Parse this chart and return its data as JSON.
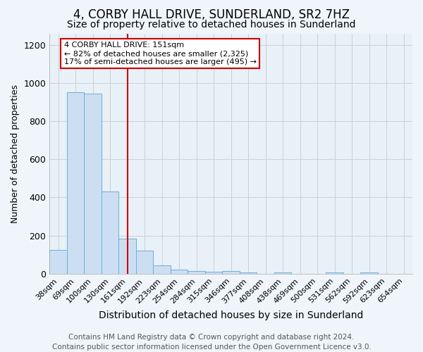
{
  "title": "4, CORBY HALL DRIVE, SUNDERLAND, SR2 7HZ",
  "subtitle": "Size of property relative to detached houses in Sunderland",
  "xlabel": "Distribution of detached houses by size in Sunderland",
  "ylabel": "Number of detached properties",
  "footer_line1": "Contains HM Land Registry data © Crown copyright and database right 2024.",
  "footer_line2": "Contains public sector information licensed under the Open Government Licence v3.0.",
  "categories": [
    "38sqm",
    "69sqm",
    "100sqm",
    "130sqm",
    "161sqm",
    "192sqm",
    "223sqm",
    "254sqm",
    "284sqm",
    "315sqm",
    "346sqm",
    "377sqm",
    "408sqm",
    "438sqm",
    "469sqm",
    "500sqm",
    "531sqm",
    "562sqm",
    "592sqm",
    "623sqm",
    "654sqm"
  ],
  "values": [
    125,
    950,
    945,
    430,
    185,
    120,
    45,
    20,
    15,
    12,
    15,
    8,
    0,
    8,
    0,
    0,
    8,
    0,
    8,
    0,
    0
  ],
  "bar_color": "#ccdff2",
  "bar_edge_color": "#6baed6",
  "bar_linewidth": 0.7,
  "grid_color": "#d0d0d0",
  "background_color": "#f0f5fc",
  "plot_bg_color": "#e8f0f8",
  "ylim": [
    0,
    1260
  ],
  "yticks": [
    0,
    200,
    400,
    600,
    800,
    1000,
    1200
  ],
  "red_line_index": 4,
  "red_line_color": "#cc0000",
  "annotation_text": "4 CORBY HALL DRIVE: 151sqm\n← 82% of detached houses are smaller (2,325)\n17% of semi-detached houses are larger (495) →",
  "annotation_box_color": "#ffffff",
  "annotation_border_color": "#cc0000",
  "title_fontsize": 12,
  "subtitle_fontsize": 10,
  "xlabel_fontsize": 10,
  "ylabel_fontsize": 9,
  "tick_fontsize": 8,
  "footer_fontsize": 7.5
}
